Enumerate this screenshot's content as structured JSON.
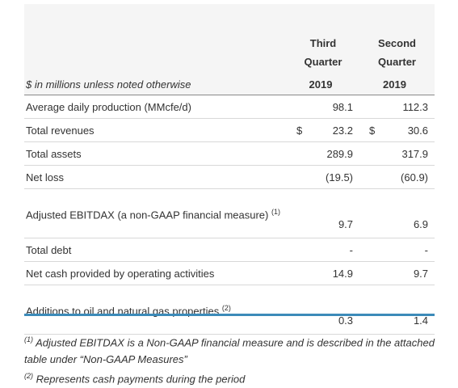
{
  "table": {
    "header": {
      "col1": "Third Quarter",
      "col2": "Second Quarter"
    },
    "subheader": {
      "label": "$ in millions unless noted otherwise",
      "col1": "2019",
      "col2": "2019"
    },
    "rows": [
      {
        "label": "Average daily production (MMcfe/d)",
        "v1": "98.1",
        "v2": "112.3"
      },
      {
        "label": "Total revenues",
        "cur1": "$",
        "v1": "23.2",
        "cur2": "$",
        "v2": "30.6"
      },
      {
        "label": "Total assets",
        "v1": "289.9",
        "v2": "317.9"
      },
      {
        "label": "Net loss",
        "v1": "(19.5)",
        "v2": "(60.9)"
      },
      {
        "label": "Adjusted EBITDAX (a non-GAAP financial measure)",
        "note": "(1)",
        "v1": "9.7",
        "v2": "6.9"
      },
      {
        "label": "Total debt",
        "v1": "-",
        "v2": "-"
      },
      {
        "label": "Net cash provided by operating activities",
        "v1": "14.9",
        "v2": "9.7"
      },
      {
        "label": "Additions to oil and natural gas properties",
        "note": "(2)",
        "v1": "0.3",
        "v2": "1.4"
      }
    ]
  },
  "footnotes": [
    {
      "mark": "(1)",
      "text": "Adjusted EBITDAX is a Non-GAAP financial measure and is described in the attached table under “Non-GAAP Measures”"
    },
    {
      "mark": "(2)",
      "text": "Represents cash payments during the period"
    }
  ]
}
